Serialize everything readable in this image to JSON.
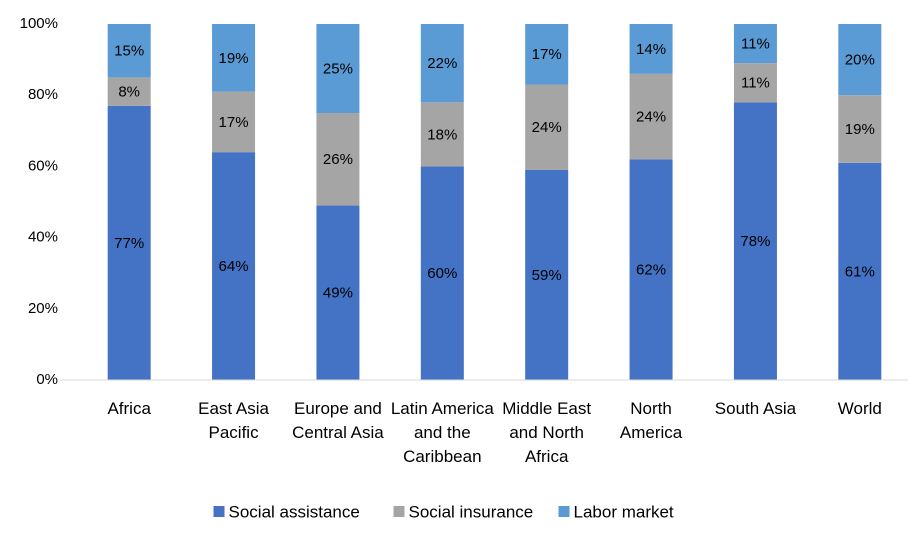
{
  "chart_data": {
    "type": "stacked-bar",
    "categories": [
      "Africa",
      "East Asia Pacific",
      "Europe and Central Asia",
      "Latin America and the Caribbean",
      "Middle East and North Africa",
      "North America",
      "South Asia",
      "World"
    ],
    "series": [
      {
        "name": "Social assistance",
        "color": "#4472c4",
        "values": [
          77,
          64,
          49,
          60,
          59,
          62,
          78,
          61
        ],
        "value_labels": [
          "77%",
          "64%",
          "49%",
          "60%",
          "59%",
          "62%",
          "78%",
          "61%"
        ]
      },
      {
        "name": "Social insurance",
        "color": "#a5a5a5",
        "values": [
          8,
          17,
          26,
          18,
          24,
          24,
          11,
          19
        ],
        "value_labels": [
          "8%",
          "17%",
          "26%",
          "18%",
          "24%",
          "24%",
          "11%",
          "19%"
        ]
      },
      {
        "name": "Labor market",
        "color": "#5b9bd5",
        "values": [
          15,
          19,
          25,
          22,
          17,
          14,
          11,
          20
        ],
        "value_labels": [
          "15%",
          "19%",
          "25%",
          "22%",
          "17%",
          "14%",
          "11%",
          "20%"
        ]
      }
    ],
    "ylim": [
      0,
      100
    ],
    "yticks": [
      {
        "value": 0,
        "label": "0%"
      },
      {
        "value": 20,
        "label": "20%"
      },
      {
        "value": 40,
        "label": "40%"
      },
      {
        "value": 60,
        "label": "60%"
      },
      {
        "value": 80,
        "label": "80%"
      },
      {
        "value": 100,
        "label": "100%"
      }
    ],
    "legend": "bottom"
  }
}
